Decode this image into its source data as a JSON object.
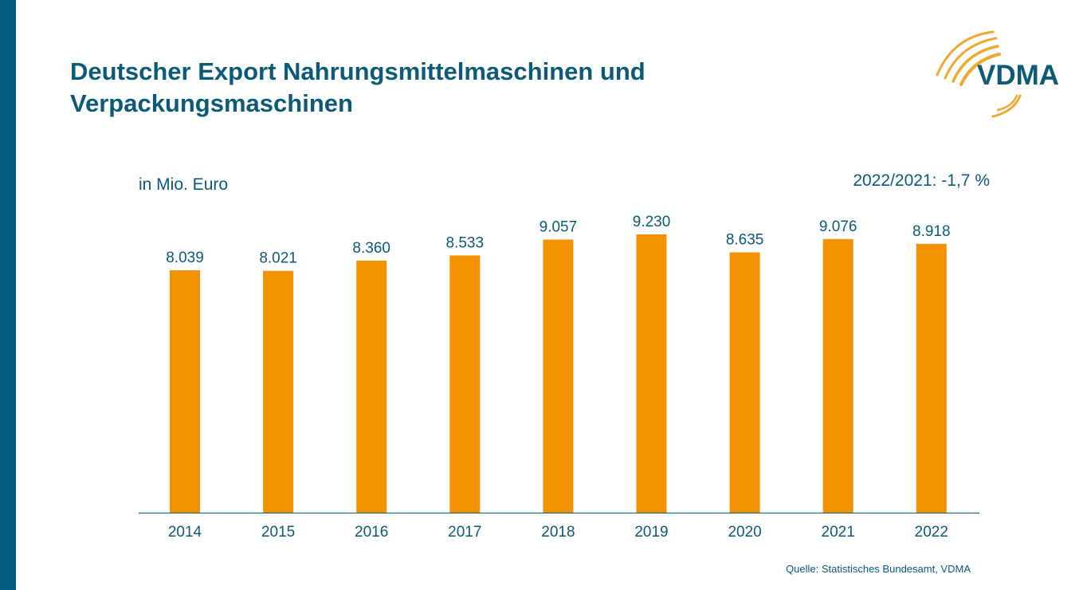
{
  "title_lines": [
    "Deutscher Export Nahrungsmittelmaschinen und",
    "Verpackungsmaschinen"
  ],
  "logo_text": "VDMA",
  "unit_label": "in Mio. Euro",
  "change_label": "2022/2021: -1,7 %",
  "source": "Quelle: Statistisches Bundesamt, VDMA",
  "colors": {
    "bar": "#f39200",
    "text": "#0a5a78",
    "side_bar": "#005b7f",
    "logo_swoosh": "#f0a830"
  },
  "chart_data": {
    "type": "bar",
    "title": "Deutscher Export Nahrungsmittelmaschinen und Verpackungsmaschinen",
    "ylabel": "in Mio. Euro",
    "xlabel": "",
    "categories": [
      "2014",
      "2015",
      "2016",
      "2017",
      "2018",
      "2019",
      "2020",
      "2021",
      "2022"
    ],
    "values": [
      8039,
      8021,
      8360,
      8533,
      9057,
      9230,
      8635,
      9076,
      8918
    ],
    "data_labels": [
      "8.039",
      "8.021",
      "8.360",
      "8.533",
      "9.057",
      "9.230",
      "8.635",
      "9.076",
      "8.918"
    ],
    "ylim": [
      0,
      9230
    ],
    "grid": false,
    "legend": "none"
  }
}
